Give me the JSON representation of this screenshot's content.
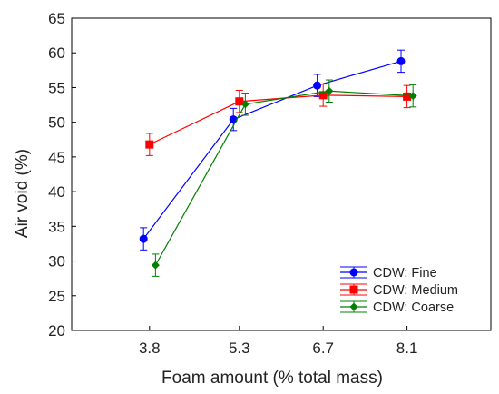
{
  "chart_data": {
    "type": "line",
    "xlabel": "Foam amount (% total mass)",
    "ylabel": "Air void (%)",
    "x_ticks": [
      "3.8",
      "5.3",
      "6.7",
      "8.1"
    ],
    "y_ticks": [
      "20",
      "25",
      "30",
      "35",
      "40",
      "45",
      "50",
      "55",
      "60",
      "65"
    ],
    "xlim": [
      2.5,
      9.5
    ],
    "ylim": [
      20,
      65
    ],
    "grid": false,
    "legend_position": "bottom-right",
    "series": [
      {
        "name": "CDW: Fine",
        "color": "#0000ff",
        "marker": "circle",
        "x": [
          3.7,
          5.2,
          6.6,
          8.0
        ],
        "y": [
          33.2,
          50.4,
          55.3,
          58.8
        ],
        "err": [
          1.6,
          1.6,
          1.6,
          1.6
        ]
      },
      {
        "name": "CDW: Medium",
        "color": "#ff0000",
        "marker": "square",
        "x": [
          3.8,
          5.3,
          6.7,
          8.1
        ],
        "y": [
          46.8,
          53.0,
          53.9,
          53.7
        ],
        "err": [
          1.6,
          1.6,
          1.6,
          1.6
        ]
      },
      {
        "name": "CDW: Coarse",
        "color": "#008000",
        "marker": "diamond",
        "x": [
          3.9,
          5.4,
          6.8,
          8.2
        ],
        "y": [
          29.4,
          52.6,
          54.5,
          53.8
        ],
        "err": [
          1.6,
          1.6,
          1.6,
          1.6
        ]
      }
    ]
  }
}
